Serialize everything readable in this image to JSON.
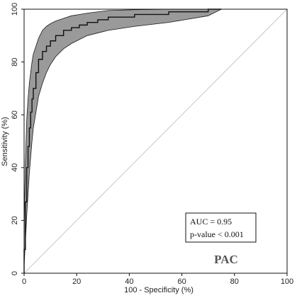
{
  "chart_data": {
    "type": "line",
    "title": "",
    "xlabel": "100 - Specificity (%)",
    "ylabel": "Sensitivity (%)",
    "xlim": [
      0,
      100
    ],
    "ylim": [
      0,
      100
    ],
    "xticks": [
      "0",
      "20",
      "40",
      "60",
      "80",
      "100"
    ],
    "yticks": [
      "0",
      "20",
      "40",
      "60",
      "80",
      "100"
    ],
    "grid": false,
    "series": [
      {
        "name": "",
        "role": "roc_curve",
        "color": "#111111",
        "x": [
          0,
          0,
          0.5,
          0.5,
          1,
          1,
          1.5,
          1.5,
          2,
          2,
          2.5,
          2.5,
          3,
          3,
          3.5,
          3.5,
          4.5,
          4.5,
          5.5,
          5.5,
          7,
          7,
          8.5,
          8.5,
          10,
          10,
          12,
          12,
          15,
          15,
          18,
          18,
          21,
          21,
          24,
          24,
          28,
          28,
          32,
          32,
          42,
          42,
          55,
          55,
          70,
          70,
          75
        ],
        "y": [
          0,
          9,
          9,
          27,
          27,
          40,
          40,
          48,
          48,
          55,
          55,
          61,
          61,
          66,
          66,
          70,
          70,
          76,
          76,
          81,
          81,
          84,
          84,
          86,
          86,
          88,
          88,
          90,
          90,
          92,
          92,
          93,
          93,
          94,
          94,
          95,
          95,
          96,
          96,
          97,
          97,
          98,
          98,
          99,
          99,
          100,
          100
        ]
      },
      {
        "name": "",
        "role": "confidence_band",
        "color": "#9a9a9a",
        "x": [
          0,
          0.5,
          1,
          1.5,
          2,
          2.5,
          3,
          3.5,
          4.5,
          5.5,
          7,
          8.5,
          10,
          12,
          15,
          18,
          21,
          24,
          28,
          32,
          42,
          55,
          70,
          75
        ],
        "upper": [
          18,
          42,
          58,
          66,
          72,
          76,
          80,
          83,
          86,
          89,
          92,
          93.5,
          94.5,
          95.5,
          96.5,
          97.5,
          98,
          98.5,
          99,
          99.5,
          99.8,
          100,
          100,
          100
        ],
        "lower": [
          3,
          12,
          22,
          30,
          38,
          44,
          50,
          55,
          61,
          67,
          72,
          76,
          79,
          82,
          85,
          87,
          88.5,
          90,
          91,
          92,
          93.5,
          95,
          97.5,
          100
        ]
      },
      {
        "name": "",
        "role": "reference_diagonal",
        "color": "#bbbbbb",
        "x": [
          0,
          100
        ],
        "y": [
          0,
          100
        ]
      }
    ],
    "annotations": {
      "auc": "AUC = 0.95",
      "pvalue": "p-value < 0.001",
      "panel_label": "PAC"
    }
  }
}
